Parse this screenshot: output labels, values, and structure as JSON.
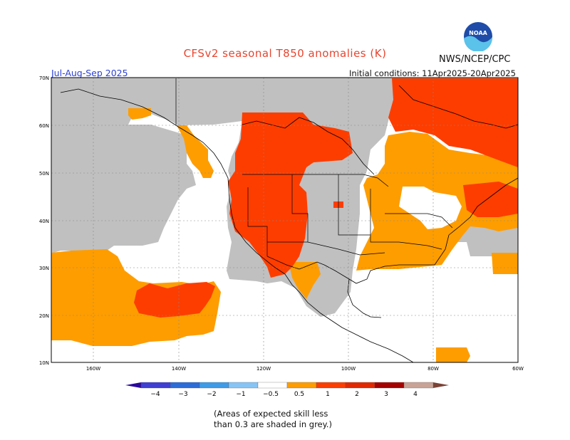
{
  "title": "CFSv2 seasonal T850 anomalies (K)",
  "agency": "NWS/NCEP/CPC",
  "logo_text": "NOAA",
  "period": "Jul-Aug-Sep 2025",
  "initial_conditions": "Initial conditions: 11Apr2025-20Apr2025",
  "lat_labels": [
    "70N",
    "60N",
    "50N",
    "40N",
    "30N",
    "20N",
    "10N"
  ],
  "lon_labels": [
    "160W",
    "140W",
    "120W",
    "100W",
    "80W",
    "60W"
  ],
  "colorbar": {
    "labels": [
      "−4",
      "−3",
      "−2",
      "−1",
      "−0.5",
      "0.5",
      "1",
      "2",
      "3",
      "4"
    ],
    "colors": [
      "#2a0a9c",
      "#3f3fd4",
      "#2b6cd9",
      "#3d9be8",
      "#86c4f5",
      "#ffffff",
      "#fe9d00",
      "#fd3d00",
      "#e22800",
      "#a50200",
      "#c9a396",
      "#7a4236"
    ]
  },
  "note_line1": "(Areas of expected skill less",
  "note_line2": "than 0.3 are shaded in grey.)",
  "colors": {
    "grey": "#c0c0c0",
    "orange": "#fe9d00",
    "red": "#fd3d00",
    "title": "#e8452f",
    "period": "#2b3fd6"
  }
}
